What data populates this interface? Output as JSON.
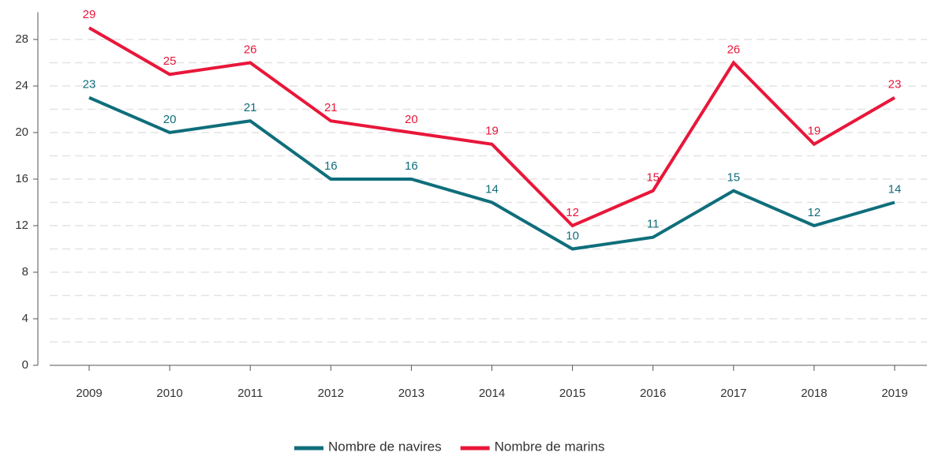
{
  "chart_data": {
    "type": "line",
    "categories": [
      "2009",
      "2010",
      "2011",
      "2012",
      "2013",
      "2014",
      "2015",
      "2016",
      "2017",
      "2018",
      "2019"
    ],
    "series": [
      {
        "name": "Nombre de navires",
        "color": "#0f6e7b",
        "values": [
          23,
          20,
          21,
          16,
          16,
          14,
          10,
          11,
          15,
          12,
          14
        ]
      },
      {
        "name": "Nombre de marins",
        "color": "#e8173a",
        "values": [
          29,
          25,
          26,
          21,
          20,
          19,
          12,
          15,
          26,
          19,
          23
        ]
      }
    ],
    "ylim": [
      0,
      30
    ],
    "yticks": [
      0,
      4,
      8,
      12,
      16,
      20,
      24,
      28
    ],
    "grid": true
  }
}
